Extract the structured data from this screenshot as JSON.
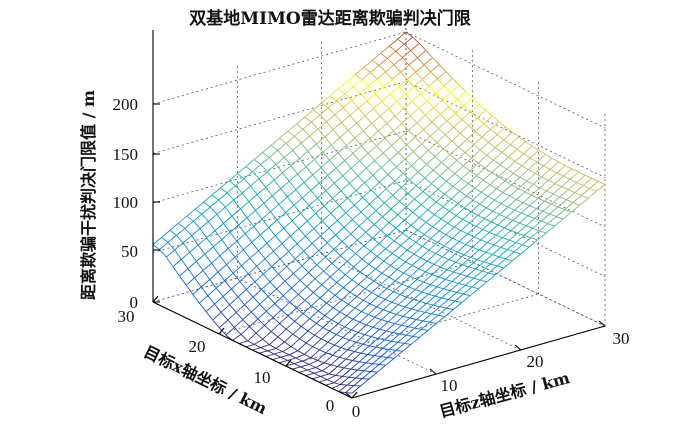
{
  "chart_data": {
    "type": "surface",
    "title": "双基地MIMO雷达距离欺骗判决门限",
    "xlabel": "目标z轴坐标 / km",
    "ylabel": "目标x轴坐标 / km",
    "zlabel": "距离欺骗干扰判决门限值 / m",
    "xlim": [
      0,
      30
    ],
    "ylim": [
      0,
      30
    ],
    "zlim": [
      0,
      200
    ],
    "x_ticks": [
      "0",
      "10",
      "20",
      "30"
    ],
    "y_ticks": [
      "0",
      "10",
      "20",
      "30"
    ],
    "z_ticks": [
      "0",
      "50",
      "100",
      "150",
      "200"
    ],
    "grid": true,
    "colormap": "parula",
    "mesh_size": 31,
    "corner_values": {
      "z0_x0": 5,
      "z30_x0": 143,
      "z0_x30": 58,
      "z30_x30": 200
    },
    "min_value": 0
  }
}
